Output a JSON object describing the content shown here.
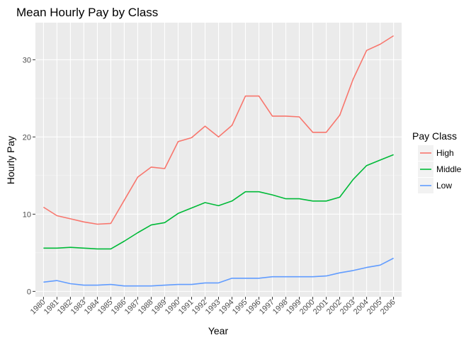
{
  "chart_data": {
    "type": "line",
    "title": "Mean Hourly Pay by Class",
    "xlabel": "Year",
    "ylabel": "Hourly Pay",
    "categories": [
      "1980",
      "1981",
      "1982",
      "1983",
      "1984",
      "1985",
      "1986",
      "1987",
      "1988",
      "1989",
      "1990",
      "1991",
      "1992",
      "1993",
      "1994",
      "1995",
      "1996",
      "1997",
      "1998",
      "1999",
      "2000",
      "2001",
      "2002",
      "2003",
      "2004",
      "2005",
      "2006"
    ],
    "y_ticks": [
      0,
      10,
      20,
      30
    ],
    "ylim": [
      -0.7,
      34.8
    ],
    "grid": true,
    "legend": {
      "title": "Pay Class",
      "position": "right"
    },
    "series": [
      {
        "name": "High",
        "color": "#F8766D",
        "values": [
          10.9,
          9.8,
          9.4,
          9.0,
          8.7,
          8.8,
          11.8,
          14.8,
          16.1,
          15.9,
          19.4,
          19.9,
          21.4,
          20.0,
          21.5,
          25.3,
          25.3,
          22.7,
          22.7,
          22.6,
          20.6,
          20.6,
          22.8,
          27.5,
          31.2,
          32.0,
          33.1
        ]
      },
      {
        "name": "Middle",
        "color": "#00BA38",
        "values": [
          5.6,
          5.6,
          5.7,
          5.6,
          5.5,
          5.5,
          6.5,
          7.6,
          8.6,
          8.9,
          10.1,
          10.8,
          11.5,
          11.1,
          11.7,
          12.9,
          12.9,
          12.5,
          12.0,
          12.0,
          11.7,
          11.7,
          12.2,
          14.5,
          16.3,
          17.0,
          17.7
        ]
      },
      {
        "name": "Low",
        "color": "#619CFF",
        "values": [
          1.2,
          1.4,
          1.0,
          0.8,
          0.8,
          0.9,
          0.7,
          0.7,
          0.7,
          0.8,
          0.9,
          0.9,
          1.1,
          1.1,
          1.7,
          1.7,
          1.7,
          1.9,
          1.9,
          1.9,
          1.9,
          2.0,
          2.4,
          2.7,
          3.1,
          3.4,
          4.3
        ]
      }
    ]
  }
}
